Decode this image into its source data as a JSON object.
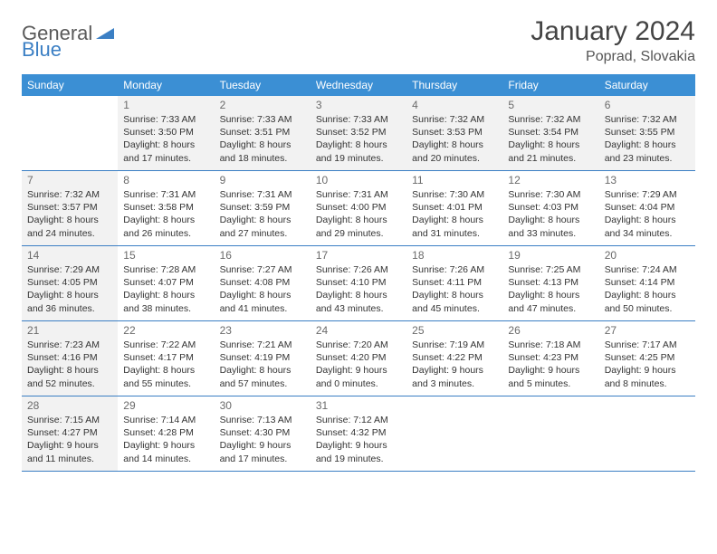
{
  "logo": {
    "part1": "General",
    "part2": "Blue"
  },
  "title": "January 2024",
  "location": "Poprad, Slovakia",
  "colors": {
    "header_bg": "#3b8fd4",
    "header_text": "#ffffff",
    "border": "#3b7fc4",
    "dim_bg": "#f2f2f2",
    "daynum": "#6a6a6a",
    "body_text": "#333333",
    "logo_gray": "#5a5a5a",
    "logo_blue": "#3b7fc4"
  },
  "days_of_week": [
    "Sunday",
    "Monday",
    "Tuesday",
    "Wednesday",
    "Thursday",
    "Friday",
    "Saturday"
  ],
  "weeks": [
    [
      {
        "n": "",
        "dim": false,
        "lines": [
          "",
          "",
          "",
          ""
        ]
      },
      {
        "n": "1",
        "dim": true,
        "lines": [
          "Sunrise: 7:33 AM",
          "Sunset: 3:50 PM",
          "Daylight: 8 hours",
          "and 17 minutes."
        ]
      },
      {
        "n": "2",
        "dim": true,
        "lines": [
          "Sunrise: 7:33 AM",
          "Sunset: 3:51 PM",
          "Daylight: 8 hours",
          "and 18 minutes."
        ]
      },
      {
        "n": "3",
        "dim": true,
        "lines": [
          "Sunrise: 7:33 AM",
          "Sunset: 3:52 PM",
          "Daylight: 8 hours",
          "and 19 minutes."
        ]
      },
      {
        "n": "4",
        "dim": true,
        "lines": [
          "Sunrise: 7:32 AM",
          "Sunset: 3:53 PM",
          "Daylight: 8 hours",
          "and 20 minutes."
        ]
      },
      {
        "n": "5",
        "dim": true,
        "lines": [
          "Sunrise: 7:32 AM",
          "Sunset: 3:54 PM",
          "Daylight: 8 hours",
          "and 21 minutes."
        ]
      },
      {
        "n": "6",
        "dim": true,
        "lines": [
          "Sunrise: 7:32 AM",
          "Sunset: 3:55 PM",
          "Daylight: 8 hours",
          "and 23 minutes."
        ]
      }
    ],
    [
      {
        "n": "7",
        "dim": true,
        "lines": [
          "Sunrise: 7:32 AM",
          "Sunset: 3:57 PM",
          "Daylight: 8 hours",
          "and 24 minutes."
        ]
      },
      {
        "n": "8",
        "dim": false,
        "lines": [
          "Sunrise: 7:31 AM",
          "Sunset: 3:58 PM",
          "Daylight: 8 hours",
          "and 26 minutes."
        ]
      },
      {
        "n": "9",
        "dim": false,
        "lines": [
          "Sunrise: 7:31 AM",
          "Sunset: 3:59 PM",
          "Daylight: 8 hours",
          "and 27 minutes."
        ]
      },
      {
        "n": "10",
        "dim": false,
        "lines": [
          "Sunrise: 7:31 AM",
          "Sunset: 4:00 PM",
          "Daylight: 8 hours",
          "and 29 minutes."
        ]
      },
      {
        "n": "11",
        "dim": false,
        "lines": [
          "Sunrise: 7:30 AM",
          "Sunset: 4:01 PM",
          "Daylight: 8 hours",
          "and 31 minutes."
        ]
      },
      {
        "n": "12",
        "dim": false,
        "lines": [
          "Sunrise: 7:30 AM",
          "Sunset: 4:03 PM",
          "Daylight: 8 hours",
          "and 33 minutes."
        ]
      },
      {
        "n": "13",
        "dim": false,
        "lines": [
          "Sunrise: 7:29 AM",
          "Sunset: 4:04 PM",
          "Daylight: 8 hours",
          "and 34 minutes."
        ]
      }
    ],
    [
      {
        "n": "14",
        "dim": true,
        "lines": [
          "Sunrise: 7:29 AM",
          "Sunset: 4:05 PM",
          "Daylight: 8 hours",
          "and 36 minutes."
        ]
      },
      {
        "n": "15",
        "dim": false,
        "lines": [
          "Sunrise: 7:28 AM",
          "Sunset: 4:07 PM",
          "Daylight: 8 hours",
          "and 38 minutes."
        ]
      },
      {
        "n": "16",
        "dim": false,
        "lines": [
          "Sunrise: 7:27 AM",
          "Sunset: 4:08 PM",
          "Daylight: 8 hours",
          "and 41 minutes."
        ]
      },
      {
        "n": "17",
        "dim": false,
        "lines": [
          "Sunrise: 7:26 AM",
          "Sunset: 4:10 PM",
          "Daylight: 8 hours",
          "and 43 minutes."
        ]
      },
      {
        "n": "18",
        "dim": false,
        "lines": [
          "Sunrise: 7:26 AM",
          "Sunset: 4:11 PM",
          "Daylight: 8 hours",
          "and 45 minutes."
        ]
      },
      {
        "n": "19",
        "dim": false,
        "lines": [
          "Sunrise: 7:25 AM",
          "Sunset: 4:13 PM",
          "Daylight: 8 hours",
          "and 47 minutes."
        ]
      },
      {
        "n": "20",
        "dim": false,
        "lines": [
          "Sunrise: 7:24 AM",
          "Sunset: 4:14 PM",
          "Daylight: 8 hours",
          "and 50 minutes."
        ]
      }
    ],
    [
      {
        "n": "21",
        "dim": true,
        "lines": [
          "Sunrise: 7:23 AM",
          "Sunset: 4:16 PM",
          "Daylight: 8 hours",
          "and 52 minutes."
        ]
      },
      {
        "n": "22",
        "dim": false,
        "lines": [
          "Sunrise: 7:22 AM",
          "Sunset: 4:17 PM",
          "Daylight: 8 hours",
          "and 55 minutes."
        ]
      },
      {
        "n": "23",
        "dim": false,
        "lines": [
          "Sunrise: 7:21 AM",
          "Sunset: 4:19 PM",
          "Daylight: 8 hours",
          "and 57 minutes."
        ]
      },
      {
        "n": "24",
        "dim": false,
        "lines": [
          "Sunrise: 7:20 AM",
          "Sunset: 4:20 PM",
          "Daylight: 9 hours",
          "and 0 minutes."
        ]
      },
      {
        "n": "25",
        "dim": false,
        "lines": [
          "Sunrise: 7:19 AM",
          "Sunset: 4:22 PM",
          "Daylight: 9 hours",
          "and 3 minutes."
        ]
      },
      {
        "n": "26",
        "dim": false,
        "lines": [
          "Sunrise: 7:18 AM",
          "Sunset: 4:23 PM",
          "Daylight: 9 hours",
          "and 5 minutes."
        ]
      },
      {
        "n": "27",
        "dim": false,
        "lines": [
          "Sunrise: 7:17 AM",
          "Sunset: 4:25 PM",
          "Daylight: 9 hours",
          "and 8 minutes."
        ]
      }
    ],
    [
      {
        "n": "28",
        "dim": true,
        "lines": [
          "Sunrise: 7:15 AM",
          "Sunset: 4:27 PM",
          "Daylight: 9 hours",
          "and 11 minutes."
        ]
      },
      {
        "n": "29",
        "dim": false,
        "lines": [
          "Sunrise: 7:14 AM",
          "Sunset: 4:28 PM",
          "Daylight: 9 hours",
          "and 14 minutes."
        ]
      },
      {
        "n": "30",
        "dim": false,
        "lines": [
          "Sunrise: 7:13 AM",
          "Sunset: 4:30 PM",
          "Daylight: 9 hours",
          "and 17 minutes."
        ]
      },
      {
        "n": "31",
        "dim": false,
        "lines": [
          "Sunrise: 7:12 AM",
          "Sunset: 4:32 PM",
          "Daylight: 9 hours",
          "and 19 minutes."
        ]
      },
      {
        "n": "",
        "dim": false,
        "lines": [
          "",
          "",
          "",
          ""
        ]
      },
      {
        "n": "",
        "dim": false,
        "lines": [
          "",
          "",
          "",
          ""
        ]
      },
      {
        "n": "",
        "dim": false,
        "lines": [
          "",
          "",
          "",
          ""
        ]
      }
    ]
  ]
}
